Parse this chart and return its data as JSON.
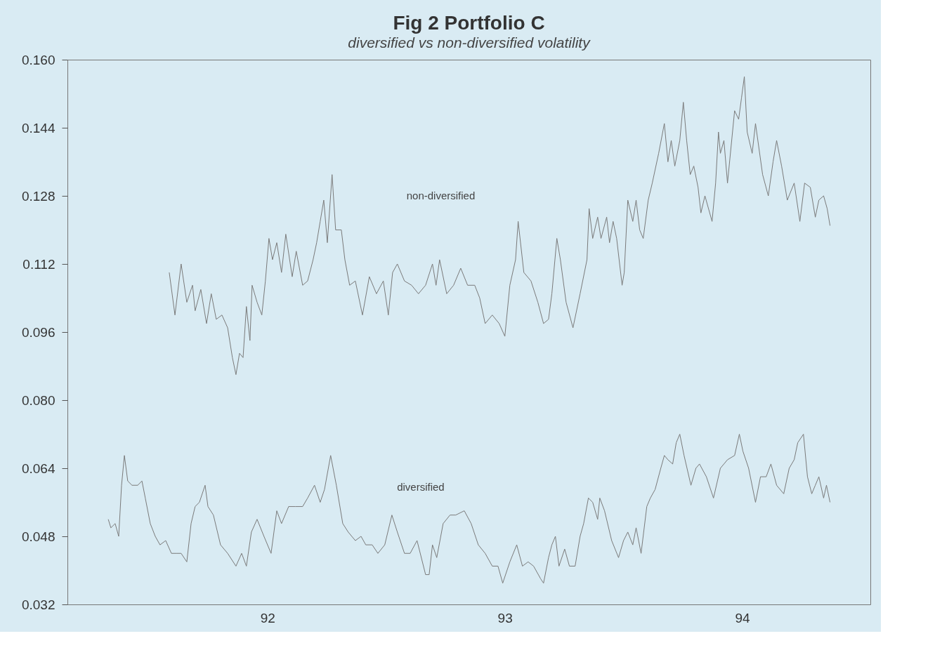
{
  "chart_data": {
    "type": "line",
    "title": "Fig 2 Portfolio C",
    "subtitle": "diversified vs non-diversified volatility",
    "xlim": [
      91.157,
      94.54
    ],
    "xticks": [
      {
        "value": 92,
        "label": "92"
      },
      {
        "value": 93,
        "label": "93"
      },
      {
        "value": 94,
        "label": "94"
      }
    ],
    "ylim": [
      0.032,
      0.16
    ],
    "yticks": [
      {
        "value": 0.032,
        "label": "0.032"
      },
      {
        "value": 0.048,
        "label": "0.048"
      },
      {
        "value": 0.064,
        "label": "0.064"
      },
      {
        "value": 0.08,
        "label": "0.080"
      },
      {
        "value": 0.096,
        "label": "0.096"
      },
      {
        "value": 0.112,
        "label": "0.112"
      },
      {
        "value": 0.128,
        "label": "0.128"
      },
      {
        "value": 0.144,
        "label": "0.144"
      },
      {
        "value": 0.16,
        "label": "0.160"
      }
    ],
    "grid": false,
    "marker": "none",
    "line_style": "solid",
    "annotations": [
      "non-diversified",
      "diversified"
    ],
    "series": [
      {
        "color": "#7a7a7a",
        "x": [
          91.586,
          91.61,
          91.636,
          91.66,
          91.684,
          91.695,
          91.719,
          91.743,
          91.763,
          91.784,
          91.808,
          91.832,
          91.852,
          91.867,
          91.882,
          91.897,
          91.911,
          91.926,
          91.935,
          91.956,
          91.976,
          91.991,
          92.006,
          92.021,
          92.039,
          92.059,
          92.077,
          92.104,
          92.121,
          92.148,
          92.169,
          92.192,
          92.207,
          92.222,
          92.237,
          92.252,
          92.272,
          92.287,
          92.311,
          92.326,
          92.346,
          92.37,
          92.4,
          92.429,
          92.459,
          92.488,
          92.509,
          92.527,
          92.547,
          92.577,
          92.607,
          92.636,
          92.666,
          92.695,
          92.71,
          92.725,
          92.755,
          92.784,
          92.814,
          92.843,
          92.873,
          92.894,
          92.917,
          92.947,
          92.976,
          93.0,
          93.021,
          93.045,
          93.056,
          93.08,
          93.11,
          93.139,
          93.163,
          93.184,
          93.198,
          93.219,
          93.234,
          93.258,
          93.287,
          93.317,
          93.346,
          93.355,
          93.37,
          93.391,
          93.405,
          93.429,
          93.441,
          93.456,
          93.471,
          93.494,
          93.503,
          93.518,
          93.539,
          93.553,
          93.568,
          93.583,
          93.604,
          93.621,
          93.648,
          93.672,
          93.687,
          93.701,
          93.716,
          93.737,
          93.752,
          93.766,
          93.781,
          93.796,
          93.814,
          93.826,
          93.843,
          93.873,
          93.888,
          93.9,
          93.908,
          93.923,
          93.938,
          93.968,
          93.985,
          93.997,
          94.009,
          94.021,
          94.042,
          94.056,
          94.086,
          94.11,
          94.13,
          94.145,
          94.166,
          94.19,
          94.219,
          94.243,
          94.263,
          94.287,
          94.308,
          94.323,
          94.343,
          94.358,
          94.37
        ],
        "values": [
          0.11,
          0.1,
          0.112,
          0.103,
          0.107,
          0.101,
          0.106,
          0.098,
          0.105,
          0.099,
          0.1,
          0.097,
          0.09,
          0.086,
          0.091,
          0.09,
          0.102,
          0.094,
          0.107,
          0.103,
          0.1,
          0.108,
          0.118,
          0.113,
          0.117,
          0.11,
          0.119,
          0.109,
          0.115,
          0.107,
          0.108,
          0.113,
          0.117,
          0.122,
          0.127,
          0.117,
          0.133,
          0.12,
          0.12,
          0.113,
          0.107,
          0.108,
          0.1,
          0.109,
          0.105,
          0.108,
          0.1,
          0.11,
          0.112,
          0.108,
          0.107,
          0.105,
          0.107,
          0.112,
          0.107,
          0.113,
          0.105,
          0.107,
          0.111,
          0.107,
          0.107,
          0.104,
          0.098,
          0.1,
          0.098,
          0.095,
          0.107,
          0.113,
          0.122,
          0.11,
          0.108,
          0.103,
          0.098,
          0.099,
          0.105,
          0.118,
          0.113,
          0.103,
          0.097,
          0.105,
          0.113,
          0.125,
          0.118,
          0.123,
          0.118,
          0.123,
          0.117,
          0.122,
          0.118,
          0.107,
          0.11,
          0.127,
          0.122,
          0.127,
          0.12,
          0.118,
          0.127,
          0.131,
          0.138,
          0.145,
          0.136,
          0.141,
          0.135,
          0.141,
          0.15,
          0.141,
          0.133,
          0.135,
          0.13,
          0.124,
          0.128,
          0.122,
          0.131,
          0.143,
          0.138,
          0.141,
          0.131,
          0.148,
          0.146,
          0.151,
          0.156,
          0.143,
          0.138,
          0.145,
          0.133,
          0.128,
          0.136,
          0.141,
          0.135,
          0.127,
          0.131,
          0.122,
          0.131,
          0.13,
          0.123,
          0.127,
          0.128,
          0.125,
          0.121
        ]
      },
      {
        "color": "#7a7a7a",
        "x": [
          91.329,
          91.34,
          91.358,
          91.373,
          91.385,
          91.397,
          91.411,
          91.429,
          91.453,
          91.471,
          91.485,
          91.506,
          91.527,
          91.547,
          91.571,
          91.595,
          91.616,
          91.636,
          91.66,
          91.678,
          91.695,
          91.713,
          91.737,
          91.749,
          91.772,
          91.802,
          91.832,
          91.867,
          91.891,
          91.911,
          91.932,
          91.956,
          91.985,
          92.015,
          92.039,
          92.059,
          92.089,
          92.118,
          92.148,
          92.169,
          92.198,
          92.222,
          92.24,
          92.266,
          92.29,
          92.317,
          92.34,
          92.37,
          92.394,
          92.414,
          92.441,
          92.465,
          92.494,
          92.524,
          92.547,
          92.577,
          92.601,
          92.63,
          92.666,
          92.681,
          92.695,
          92.713,
          92.74,
          92.769,
          92.793,
          92.829,
          92.858,
          92.888,
          92.917,
          92.947,
          92.971,
          92.991,
          93.021,
          93.05,
          93.074,
          93.098,
          93.121,
          93.151,
          93.163,
          93.184,
          93.198,
          93.213,
          93.228,
          93.252,
          93.272,
          93.296,
          93.317,
          93.332,
          93.352,
          93.37,
          93.391,
          93.4,
          93.42,
          93.45,
          93.479,
          93.5,
          93.518,
          93.539,
          93.553,
          93.574,
          93.598,
          93.613,
          93.633,
          93.657,
          93.672,
          93.687,
          93.707,
          93.722,
          93.737,
          93.755,
          93.784,
          93.805,
          93.82,
          93.849,
          93.879,
          93.908,
          93.923,
          93.938,
          93.968,
          93.988,
          94.003,
          94.027,
          94.056,
          94.077,
          94.101,
          94.121,
          94.145,
          94.175,
          94.198,
          94.219,
          94.234,
          94.258,
          94.275,
          94.293,
          94.308,
          94.323,
          94.343,
          94.355,
          94.37
        ],
        "values": [
          0.052,
          0.05,
          0.051,
          0.048,
          0.06,
          0.067,
          0.061,
          0.06,
          0.06,
          0.061,
          0.057,
          0.051,
          0.048,
          0.046,
          0.047,
          0.044,
          0.044,
          0.044,
          0.042,
          0.051,
          0.055,
          0.056,
          0.06,
          0.055,
          0.053,
          0.046,
          0.044,
          0.041,
          0.044,
          0.041,
          0.049,
          0.052,
          0.048,
          0.044,
          0.054,
          0.051,
          0.055,
          0.055,
          0.055,
          0.057,
          0.06,
          0.056,
          0.059,
          0.067,
          0.06,
          0.051,
          0.049,
          0.047,
          0.048,
          0.046,
          0.046,
          0.044,
          0.046,
          0.053,
          0.049,
          0.044,
          0.044,
          0.047,
          0.039,
          0.039,
          0.046,
          0.043,
          0.051,
          0.053,
          0.053,
          0.054,
          0.051,
          0.046,
          0.044,
          0.041,
          0.041,
          0.037,
          0.042,
          0.046,
          0.041,
          0.042,
          0.041,
          0.038,
          0.037,
          0.043,
          0.046,
          0.048,
          0.041,
          0.045,
          0.041,
          0.041,
          0.048,
          0.051,
          0.057,
          0.056,
          0.052,
          0.057,
          0.054,
          0.047,
          0.043,
          0.047,
          0.049,
          0.046,
          0.05,
          0.044,
          0.055,
          0.057,
          0.059,
          0.064,
          0.067,
          0.066,
          0.065,
          0.07,
          0.072,
          0.067,
          0.06,
          0.064,
          0.065,
          0.062,
          0.057,
          0.064,
          0.065,
          0.066,
          0.067,
          0.072,
          0.068,
          0.064,
          0.056,
          0.062,
          0.062,
          0.065,
          0.06,
          0.058,
          0.064,
          0.066,
          0.07,
          0.072,
          0.062,
          0.058,
          0.06,
          0.062,
          0.057,
          0.06,
          0.056
        ]
      }
    ]
  }
}
